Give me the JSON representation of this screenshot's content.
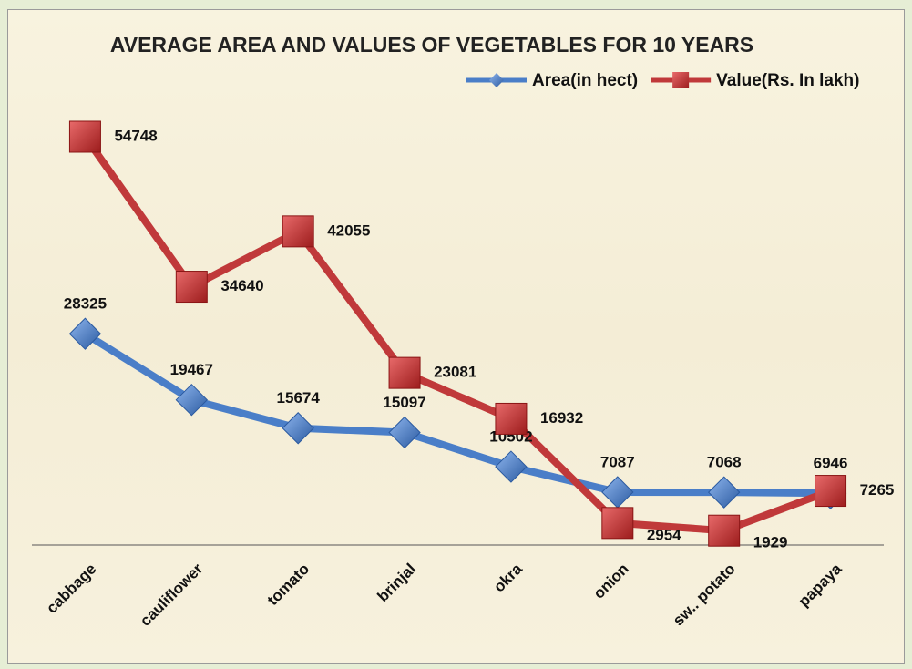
{
  "chart_data": {
    "type": "line",
    "title": "AVERAGE AREA AND VALUES OF VEGETABLES FOR 10 YEARS",
    "categories": [
      "cabbage",
      "cauliflower",
      "tomato",
      "brinjal",
      "okra",
      "onion",
      "sw.. potato",
      "papaya"
    ],
    "series": [
      {
        "name": "Area(in hect)",
        "color": "#4a7ec8",
        "values": [
          28325,
          19467,
          15674,
          15097,
          10502,
          7087,
          7068,
          6946
        ]
      },
      {
        "name": "Value(Rs. In lakh)",
        "color": "#c0393a",
        "values": [
          54748,
          34640,
          42055,
          23081,
          16932,
          2954,
          1929,
          7265
        ]
      }
    ],
    "legend": "top-right"
  }
}
